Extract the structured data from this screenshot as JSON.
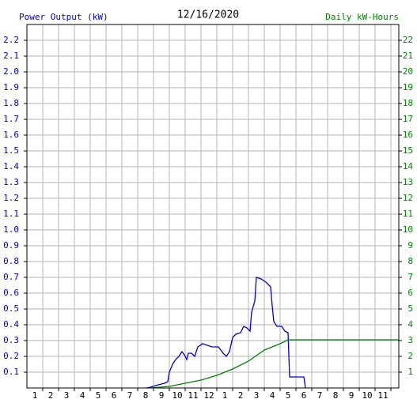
{
  "chart_data": {
    "type": "line",
    "title": "12/16/2020",
    "y_label": "Power Output (kW)",
    "y2_label": "Daily kW-Hours",
    "xlim": [
      0.5,
      24
    ],
    "xticks": [
      1,
      2,
      3,
      4,
      5,
      6,
      7,
      8,
      9,
      10,
      11,
      12,
      {
        "value": 13,
        "label": "1"
      },
      {
        "value": 14,
        "label": "2"
      },
      {
        "value": 15,
        "label": "3"
      },
      {
        "value": 16,
        "label": "4"
      },
      {
        "value": 17,
        "label": "5"
      },
      {
        "value": 18,
        "label": "6"
      },
      {
        "value": 19,
        "label": "7"
      },
      {
        "value": 20,
        "label": "8"
      },
      {
        "value": 21,
        "label": "9"
      },
      {
        "value": 22,
        "label": "10"
      },
      {
        "value": 23,
        "label": "11"
      }
    ],
    "ylim": [
      0,
      2.3
    ],
    "yticks": [
      0.1,
      0.2,
      0.3,
      0.4,
      0.5,
      0.6,
      0.7,
      0.8,
      0.9,
      {
        "value": 1,
        "label": "1.0"
      },
      1.1,
      1.2,
      1.3,
      1.4,
      1.5,
      1.6,
      1.7,
      1.8,
      1.9,
      {
        "value": 2,
        "label": "2.0"
      },
      2.1,
      2.2
    ],
    "y2lim": [
      0,
      23
    ],
    "y2ticks": [
      1,
      2,
      3,
      4,
      5,
      6,
      7,
      8,
      9,
      10,
      11,
      12,
      13,
      14,
      15,
      16,
      17,
      18,
      19,
      20,
      21,
      22
    ],
    "grid": true,
    "series": [
      {
        "name": "Power Output (kW)",
        "color": "#0000cc",
        "x": [
          8.05,
          8.3,
          8.8,
          9.2,
          9.4,
          9.5,
          9.7,
          9.9,
          10.1,
          10.3,
          10.45,
          10.6,
          10.7,
          10.9,
          11.1,
          11.3,
          11.6,
          11.9,
          12.2,
          12.6,
          12.9,
          13.1,
          13.3,
          13.5,
          13.7,
          14.0,
          14.2,
          14.4,
          14.6,
          14.7,
          14.9,
          15.0,
          15.3,
          15.6,
          15.9,
          16.0,
          16.1,
          16.3,
          16.6,
          16.8,
          17.0,
          17.1,
          18.0,
          18.1
        ],
        "values": [
          0,
          0.005,
          0.02,
          0.03,
          0.04,
          0.1,
          0.15,
          0.18,
          0.2,
          0.23,
          0.21,
          0.18,
          0.22,
          0.22,
          0.2,
          0.26,
          0.28,
          0.27,
          0.26,
          0.26,
          0.22,
          0.2,
          0.23,
          0.32,
          0.34,
          0.35,
          0.39,
          0.38,
          0.36,
          0.48,
          0.55,
          0.7,
          0.69,
          0.67,
          0.64,
          0.52,
          0.42,
          0.39,
          0.39,
          0.36,
          0.35,
          0.07,
          0.07,
          0
        ]
      },
      {
        "name": "Daily kW-Hours",
        "color": "#008000",
        "axis": "y2",
        "x": [
          8.3,
          9.5,
          10.5,
          11.5,
          12.5,
          13.5,
          14.5,
          15.5,
          16.5,
          17.0,
          24
        ],
        "values": [
          0,
          0.1,
          0.3,
          0.5,
          0.8,
          1.2,
          1.7,
          2.4,
          2.8,
          3.05,
          3.05
        ]
      }
    ]
  }
}
